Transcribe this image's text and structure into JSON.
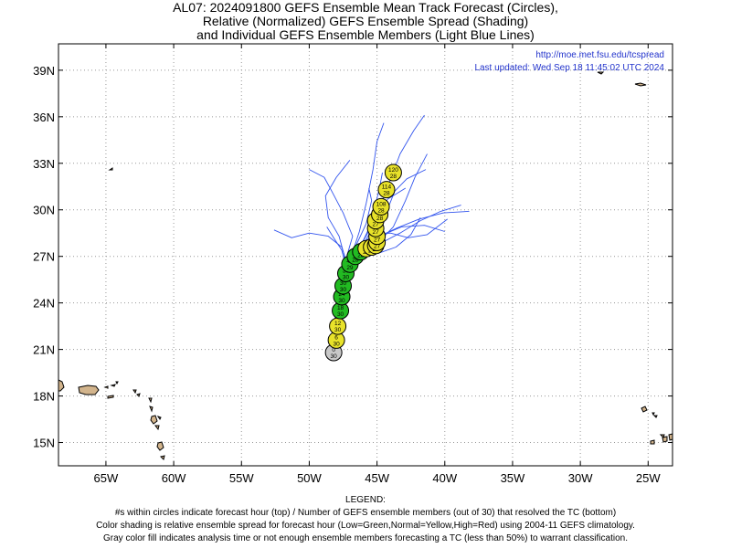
{
  "titles": {
    "line1": "AL07: 2024091800 GEFS Ensemble Mean Track Forecast (Circles),",
    "line2": "Relative (Normalized) GEFS Ensemble Spread (Shading)",
    "line3": "and Individual GEFS Ensemble Members (Light Blue Lines)"
  },
  "credits": {
    "url": "http://moe.met.fsu.edu/tcspread",
    "updated": "Last updated: Wed Sep 18 11:45:02 UTC 2024"
  },
  "legend": {
    "heading": "LEGEND:",
    "line1": "#s within circles indicate forecast hour (top) / Number of GEFS ensemble members (out of 30) that resolved the TC (bottom)",
    "line2": "Color shading is relative ensemble spread for forecast hour (Low=Green,Normal=Yellow,High=Red) using 2004-11 GEFS climatology.",
    "line3": "Gray color fill indicates analysis time or not enough ensemble members forecasting a TC (less than 50%) to warrant classification."
  },
  "colors": {
    "low": "#22bb22",
    "normal": "#e8e22a",
    "analysis": "#c8c8c8",
    "member_line": "#3355ee",
    "credit_text": "#2233cc",
    "land": "#d2b48c",
    "grid": "#999999"
  },
  "chart_data": {
    "type": "scatter",
    "map": "track",
    "lon_range": [
      -68.5,
      -23.2
    ],
    "lat_range": [
      13.5,
      40.7
    ],
    "x_ticks": [
      -65,
      -60,
      -55,
      -50,
      -45,
      -40,
      -35,
      -30,
      -25
    ],
    "x_tick_labels": [
      "65W",
      "60W",
      "55W",
      "50W",
      "45W",
      "40W",
      "35W",
      "30W",
      "25W"
    ],
    "y_ticks": [
      15,
      18,
      21,
      24,
      27,
      30,
      33,
      36,
      39
    ],
    "y_tick_labels": [
      "15N",
      "18N",
      "21N",
      "24N",
      "27N",
      "30N",
      "33N",
      "36N",
      "39N"
    ],
    "grid": true,
    "mean_track": [
      {
        "hour": "0",
        "members": "30",
        "lon": -48.2,
        "lat": 20.8,
        "spread": "analysis"
      },
      {
        "hour": "6",
        "members": "30",
        "lon": -48.0,
        "lat": 21.6,
        "spread": "normal"
      },
      {
        "hour": "12",
        "members": "30",
        "lon": -47.9,
        "lat": 22.5,
        "spread": "normal"
      },
      {
        "hour": "18",
        "members": "30",
        "lon": -47.7,
        "lat": 23.5,
        "spread": "low"
      },
      {
        "hour": "24",
        "members": "30",
        "lon": -47.6,
        "lat": 24.4,
        "spread": "low"
      },
      {
        "hour": "30",
        "members": "30",
        "lon": -47.5,
        "lat": 25.1,
        "spread": "low"
      },
      {
        "hour": "36",
        "members": "30",
        "lon": -47.3,
        "lat": 25.9,
        "spread": "low"
      },
      {
        "hour": "42",
        "members": "29",
        "lon": -47.0,
        "lat": 26.5,
        "spread": "low"
      },
      {
        "hour": "48",
        "members": "28",
        "lon": -46.6,
        "lat": 27.0,
        "spread": "low"
      },
      {
        "hour": "54",
        "members": "28",
        "lon": -46.2,
        "lat": 27.3,
        "spread": "low"
      },
      {
        "hour": "60",
        "members": "28",
        "lon": -45.8,
        "lat": 27.5,
        "spread": "normal"
      },
      {
        "hour": "66",
        "members": "28",
        "lon": -45.4,
        "lat": 27.6,
        "spread": "normal"
      },
      {
        "hour": "72",
        "members": "27",
        "lon": -45.1,
        "lat": 27.7,
        "spread": "normal"
      },
      {
        "hour": "78",
        "members": "27",
        "lon": -45.0,
        "lat": 27.9,
        "spread": "normal"
      },
      {
        "hour": "84",
        "members": "27",
        "lon": -45.0,
        "lat": 28.3,
        "spread": "normal"
      },
      {
        "hour": "90",
        "members": "27",
        "lon": -45.1,
        "lat": 28.8,
        "spread": "normal"
      },
      {
        "hour": "96",
        "members": "27",
        "lon": -45.1,
        "lat": 29.3,
        "spread": "normal"
      },
      {
        "hour": "102",
        "members": "28",
        "lon": -44.8,
        "lat": 29.7,
        "spread": "normal"
      },
      {
        "hour": "108",
        "members": "28",
        "lon": -44.7,
        "lat": 30.2,
        "spread": "normal"
      },
      {
        "hour": "114",
        "members": "28",
        "lon": -44.3,
        "lat": 31.3,
        "spread": "normal"
      },
      {
        "hour": "120",
        "members": "28",
        "lon": -43.8,
        "lat": 32.4,
        "spread": "normal"
      }
    ],
    "member_tracks": [
      [
        [
          -48.4,
          20.4
        ],
        [
          -48.1,
          22.0
        ],
        [
          -47.8,
          24.0
        ],
        [
          -47.4,
          25.6
        ],
        [
          -46.8,
          26.8
        ],
        [
          -45.8,
          27.4
        ],
        [
          -44.6,
          27.9
        ],
        [
          -43.3,
          28.5
        ],
        [
          -41.8,
          29.3
        ],
        [
          -40.3,
          29.9
        ],
        [
          -38.8,
          30.3
        ]
      ],
      [
        [
          -48.4,
          20.4
        ],
        [
          -48.0,
          22.2
        ],
        [
          -47.7,
          24.1
        ],
        [
          -47.2,
          25.9
        ],
        [
          -46.4,
          27.1
        ],
        [
          -45.6,
          28.4
        ],
        [
          -44.9,
          29.9
        ],
        [
          -44.2,
          31.5
        ],
        [
          -43.3,
          33.6
        ],
        [
          -42.3,
          35.1
        ],
        [
          -41.5,
          36.1
        ]
      ],
      [
        [
          -48.4,
          20.4
        ],
        [
          -48.1,
          22.0
        ],
        [
          -47.8,
          24.2
        ],
        [
          -47.5,
          25.8
        ],
        [
          -46.9,
          27.0
        ],
        [
          -46.3,
          28.6
        ],
        [
          -45.8,
          30.4
        ],
        [
          -45.3,
          32.6
        ],
        [
          -45.0,
          34.4
        ],
        [
          -44.5,
          35.6
        ]
      ],
      [
        [
          -48.4,
          20.4
        ],
        [
          -48.2,
          22.3
        ],
        [
          -47.9,
          24.4
        ],
        [
          -47.5,
          26.0
        ],
        [
          -47.0,
          27.2
        ],
        [
          -46.2,
          27.4
        ],
        [
          -45.0,
          27.8
        ],
        [
          -43.8,
          28.9
        ],
        [
          -42.9,
          30.6
        ],
        [
          -42.2,
          32.1
        ],
        [
          -41.3,
          33.6
        ]
      ],
      [
        [
          -48.4,
          20.4
        ],
        [
          -48.1,
          22.2
        ],
        [
          -47.8,
          24.1
        ],
        [
          -47.4,
          25.7
        ],
        [
          -46.9,
          26.6
        ],
        [
          -46.0,
          27.2
        ],
        [
          -45.2,
          28.0
        ],
        [
          -44.5,
          29.4
        ],
        [
          -43.7,
          31.2
        ],
        [
          -42.8,
          32.0
        ],
        [
          -41.4,
          32.6
        ]
      ],
      [
        [
          -48.4,
          20.4
        ],
        [
          -48.0,
          22.0
        ],
        [
          -47.8,
          23.9
        ],
        [
          -47.6,
          25.5
        ],
        [
          -47.3,
          26.8
        ],
        [
          -47.6,
          27.6
        ],
        [
          -48.6,
          28.3
        ],
        [
          -50.0,
          28.5
        ],
        [
          -51.3,
          28.2
        ],
        [
          -52.6,
          28.7
        ]
      ],
      [
        [
          -48.4,
          20.4
        ],
        [
          -48.1,
          22.1
        ],
        [
          -47.9,
          24.0
        ],
        [
          -47.6,
          25.8
        ],
        [
          -47.4,
          27.0
        ],
        [
          -47.8,
          28.3
        ],
        [
          -48.6,
          29.5
        ],
        [
          -48.8,
          30.9
        ],
        [
          -48.0,
          32.1
        ],
        [
          -47.0,
          33.2
        ]
      ],
      [
        [
          -48.4,
          20.4
        ],
        [
          -48.0,
          22.3
        ],
        [
          -47.7,
          24.3
        ],
        [
          -47.3,
          26.0
        ],
        [
          -46.8,
          27.1
        ],
        [
          -46.3,
          27.7
        ],
        [
          -45.2,
          28.4
        ],
        [
          -44.0,
          28.5
        ],
        [
          -42.7,
          28.2
        ],
        [
          -41.3,
          28.4
        ],
        [
          -39.8,
          29.4
        ]
      ],
      [
        [
          -48.4,
          20.4
        ],
        [
          -48.1,
          22.2
        ],
        [
          -47.8,
          24.1
        ],
        [
          -47.4,
          25.8
        ],
        [
          -46.9,
          27.0
        ],
        [
          -46.1,
          27.6
        ],
        [
          -45.3,
          28.1
        ],
        [
          -43.6,
          28.8
        ],
        [
          -41.9,
          29.4
        ],
        [
          -40.1,
          29.8
        ],
        [
          -38.2,
          29.9
        ]
      ],
      [
        [
          -48.4,
          20.4
        ],
        [
          -48.1,
          22.0
        ],
        [
          -47.8,
          24.0
        ],
        [
          -47.5,
          25.6
        ],
        [
          -47.1,
          26.8
        ],
        [
          -46.5,
          27.8
        ],
        [
          -45.8,
          29.1
        ],
        [
          -45.4,
          30.6
        ],
        [
          -45.6,
          31.4
        ]
      ],
      [
        [
          -48.4,
          20.4
        ],
        [
          -48.0,
          22.0
        ],
        [
          -47.7,
          24.0
        ],
        [
          -47.3,
          25.8
        ],
        [
          -46.7,
          27.0
        ],
        [
          -46.0,
          27.6
        ],
        [
          -44.8,
          28.3
        ],
        [
          -43.2,
          28.9
        ],
        [
          -41.5,
          29.0
        ],
        [
          -40.0,
          28.6
        ]
      ],
      [
        [
          -48.4,
          20.4
        ],
        [
          -48.2,
          22.2
        ],
        [
          -47.9,
          24.2
        ],
        [
          -47.6,
          25.8
        ],
        [
          -47.2,
          27.1
        ],
        [
          -46.8,
          28.3
        ],
        [
          -47.5,
          29.8
        ],
        [
          -48.4,
          31.3
        ],
        [
          -48.9,
          32.1
        ],
        [
          -50.0,
          32.6
        ]
      ],
      [
        [
          -48.4,
          20.4
        ],
        [
          -48.1,
          22.1
        ],
        [
          -47.8,
          24.2
        ],
        [
          -47.5,
          25.7
        ],
        [
          -47.1,
          26.9
        ],
        [
          -46.3,
          27.5
        ],
        [
          -45.7,
          28.6
        ],
        [
          -45.2,
          30.0
        ],
        [
          -44.8,
          31.5
        ],
        [
          -44.6,
          32.4
        ]
      ],
      [
        [
          -48.4,
          20.4
        ],
        [
          -48.1,
          22.1
        ],
        [
          -47.8,
          24.0
        ],
        [
          -47.6,
          25.6
        ],
        [
          -47.4,
          26.7
        ],
        [
          -47.6,
          27.4
        ],
        [
          -48.2,
          28.2
        ],
        [
          -48.7,
          28.9
        ]
      ],
      [
        [
          -48.4,
          20.4
        ],
        [
          -48.1,
          22.1
        ],
        [
          -47.8,
          24.0
        ],
        [
          -47.4,
          25.7
        ],
        [
          -46.9,
          26.9
        ],
        [
          -46.2,
          27.7
        ],
        [
          -45.5,
          28.8
        ],
        [
          -45.0,
          29.8
        ],
        [
          -44.2,
          30.7
        ],
        [
          -42.9,
          31.4
        ]
      ],
      [
        [
          -48.4,
          20.4
        ],
        [
          -48.1,
          22.2
        ],
        [
          -47.7,
          24.1
        ],
        [
          -47.3,
          25.9
        ],
        [
          -46.8,
          27.0
        ],
        [
          -46.1,
          27.1
        ],
        [
          -44.9,
          27.2
        ],
        [
          -43.6,
          27.6
        ],
        [
          -42.5,
          28.4
        ],
        [
          -41.8,
          29.5
        ]
      ]
    ]
  }
}
